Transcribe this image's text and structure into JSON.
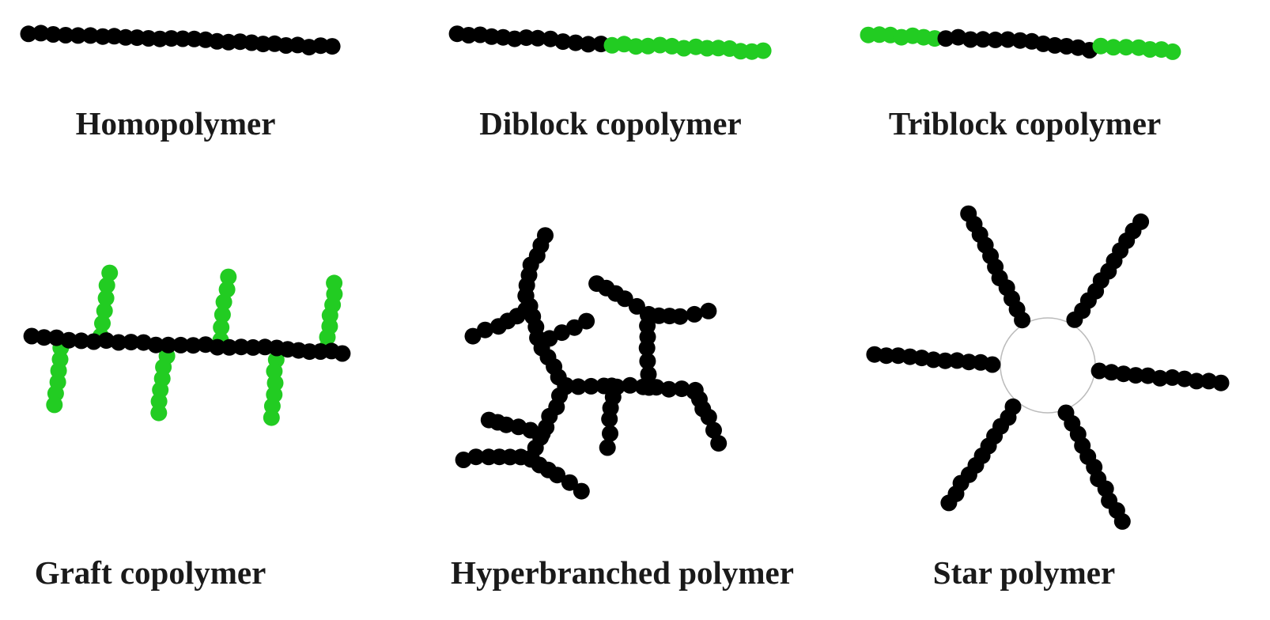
{
  "labels": {
    "homopolymer": "Homopolymer",
    "diblock": "Diblock copolymer",
    "triblock": "Triblock copolymer",
    "graft": "Graft copolymer",
    "hyperbranched": "Hyperbranched polymer",
    "star": "Star polymer"
  },
  "colors": {
    "monomer_a": "#000000",
    "monomer_b": "#22cc22",
    "core_fill": "#ffffff",
    "core_stroke": "#bbbbbb",
    "text": "#1a1a1a"
  }
}
